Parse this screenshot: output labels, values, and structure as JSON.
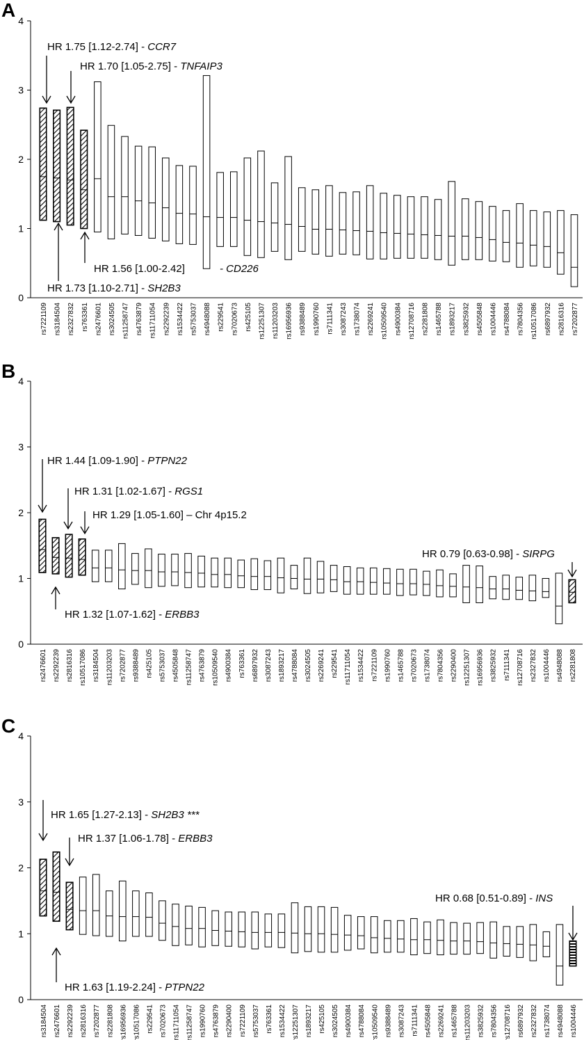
{
  "chart_data": [
    {
      "panel": "A",
      "type": "box",
      "ylim": [
        0,
        4
      ],
      "yticks": [
        0,
        1,
        2,
        3,
        4
      ],
      "categories": [
        "rs7221109",
        "rs3184504",
        "rs2327832",
        "rs763361",
        "rs2476601",
        "rs3024505",
        "rs11258747",
        "rs4763879",
        "rs11711054",
        "rs2292239",
        "rs1534422",
        "rs5753037",
        "rs4948088",
        "rs229541",
        "rs7020673",
        "rs425105",
        "rs12251307",
        "rs11203203",
        "rs16956936",
        "rs9388489",
        "rs1990760",
        "rs7111341",
        "rs3087243",
        "rs1738074",
        "rs2269241",
        "rs10509540",
        "rs4900384",
        "rs12708716",
        "rs2281808",
        "rs1465788",
        "rs1893217",
        "rs3825932",
        "rs4505848",
        "rs1004446",
        "rs4788084",
        "rs7804356",
        "rs10517086",
        "rs6897932",
        "rs2816316",
        "rs7202877"
      ],
      "hr": [
        1.75,
        1.73,
        1.7,
        1.56,
        1.72,
        1.46,
        1.46,
        1.4,
        1.37,
        1.3,
        1.22,
        1.21,
        1.17,
        1.16,
        1.16,
        1.12,
        1.1,
        1.08,
        1.06,
        1.03,
        0.99,
        0.99,
        0.98,
        0.97,
        0.96,
        0.94,
        0.93,
        0.92,
        0.91,
        0.9,
        0.89,
        0.89,
        0.87,
        0.84,
        0.8,
        0.79,
        0.76,
        0.74,
        0.65,
        0.44
      ],
      "lower": [
        1.12,
        1.1,
        1.05,
        1.0,
        0.95,
        0.85,
        0.92,
        0.9,
        0.86,
        0.82,
        0.78,
        0.77,
        0.42,
        0.74,
        0.74,
        0.61,
        0.58,
        0.67,
        0.55,
        0.67,
        0.63,
        0.6,
        0.63,
        0.62,
        0.56,
        0.56,
        0.57,
        0.57,
        0.57,
        0.55,
        0.47,
        0.55,
        0.55,
        0.53,
        0.52,
        0.44,
        0.46,
        0.44,
        0.34,
        0.16
      ],
      "upper": [
        2.74,
        2.71,
        2.75,
        2.42,
        3.12,
        2.49,
        2.33,
        2.19,
        2.18,
        2.02,
        1.91,
        1.9,
        3.21,
        1.81,
        1.82,
        2.02,
        2.12,
        1.66,
        2.04,
        1.59,
        1.56,
        1.62,
        1.52,
        1.53,
        1.62,
        1.51,
        1.48,
        1.46,
        1.46,
        1.42,
        1.68,
        1.43,
        1.39,
        1.32,
        1.26,
        1.36,
        1.26,
        1.24,
        1.26,
        1.2
      ],
      "style": [
        "hatch",
        "hatch",
        "hatch",
        "hatch",
        "plain",
        "plain",
        "plain",
        "plain",
        "plain",
        "plain",
        "plain",
        "plain",
        "plain",
        "plain",
        "plain",
        "plain",
        "plain",
        "plain",
        "plain",
        "plain",
        "plain",
        "plain",
        "plain",
        "plain",
        "plain",
        "plain",
        "plain",
        "plain",
        "plain",
        "plain",
        "plain",
        "plain",
        "plain",
        "plain",
        "plain",
        "plain",
        "plain",
        "plain",
        "plain",
        "plain"
      ],
      "annotations": [
        {
          "text_plain": "HR 1.75 [1.12-2.74] - ",
          "text_italic": "CCR7"
        },
        {
          "text_plain": "HR 1.70 [1.05-2.75] - ",
          "text_italic": "TNFAIP3"
        },
        {
          "text_plain": "HR 1.56 [1.00-2.42]",
          "text_italic": "- CD226"
        },
        {
          "text_plain": "HR 1.73 [1.10-2.71] - ",
          "text_italic": "SH2B3"
        }
      ]
    },
    {
      "panel": "B",
      "type": "box",
      "ylim": [
        0,
        4
      ],
      "yticks": [
        0,
        1,
        2,
        3,
        4
      ],
      "categories": [
        "rs2476601",
        "rs2292239",
        "rs2816316",
        "rs10517086",
        "rs3184504",
        "rs11203203",
        "rs7202877",
        "rs9388489",
        "rs425105",
        "rs5753037",
        "rs4505848",
        "rs11258747",
        "rs4763879",
        "rs10509540",
        "rs4900384",
        "rs763361",
        "rs6897932",
        "rs3087243",
        "rs1893217",
        "rs4788084",
        "rs3024505",
        "rs2269241",
        "rs229541",
        "rs11711054",
        "rs1534422",
        "rs7221109",
        "rs1990760",
        "rs1465788",
        "rs7020673",
        "rs1738074",
        "rs7804356",
        "rs2290400",
        "rs12251307",
        "rs16956936",
        "rs3825932",
        "rs7111341",
        "rs12708716",
        "rs2327832",
        "rs1004446",
        "rs4948088",
        "rs2281808"
      ],
      "hr": [
        1.44,
        1.32,
        1.31,
        1.29,
        1.16,
        1.16,
        1.13,
        1.12,
        1.12,
        1.1,
        1.1,
        1.09,
        1.08,
        1.06,
        1.06,
        1.04,
        1.03,
        1.03,
        1.01,
        1.0,
        0.99,
        0.99,
        0.98,
        0.95,
        0.95,
        0.94,
        0.93,
        0.92,
        0.92,
        0.91,
        0.89,
        0.88,
        0.87,
        0.86,
        0.84,
        0.84,
        0.82,
        0.81,
        0.8,
        0.58,
        0.79
      ],
      "lower": [
        1.09,
        1.07,
        1.02,
        1.05,
        0.95,
        0.95,
        0.84,
        0.91,
        0.86,
        0.88,
        0.89,
        0.86,
        0.87,
        0.87,
        0.86,
        0.86,
        0.83,
        0.83,
        0.78,
        0.84,
        0.77,
        0.78,
        0.8,
        0.76,
        0.76,
        0.76,
        0.76,
        0.74,
        0.75,
        0.74,
        0.72,
        0.72,
        0.63,
        0.63,
        0.69,
        0.68,
        0.68,
        0.66,
        0.71,
        0.31,
        0.63
      ],
      "upper": [
        1.9,
        1.62,
        1.67,
        1.6,
        1.43,
        1.43,
        1.53,
        1.38,
        1.45,
        1.37,
        1.37,
        1.38,
        1.34,
        1.31,
        1.31,
        1.28,
        1.3,
        1.27,
        1.31,
        1.2,
        1.31,
        1.26,
        1.2,
        1.18,
        1.16,
        1.16,
        1.15,
        1.14,
        1.14,
        1.11,
        1.13,
        1.07,
        1.2,
        1.19,
        1.03,
        1.05,
        1.02,
        1.05,
        1.0,
        1.08,
        0.98
      ],
      "style": [
        "hatch",
        "hatch",
        "hatch",
        "hatch",
        "plain",
        "plain",
        "plain",
        "plain",
        "plain",
        "plain",
        "plain",
        "plain",
        "plain",
        "plain",
        "plain",
        "plain",
        "plain",
        "plain",
        "plain",
        "plain",
        "plain",
        "plain",
        "plain",
        "plain",
        "plain",
        "plain",
        "plain",
        "plain",
        "plain",
        "plain",
        "plain",
        "plain",
        "plain",
        "plain",
        "plain",
        "plain",
        "plain",
        "plain",
        "plain",
        "plain",
        "hatch"
      ],
      "annotations": [
        {
          "text_plain": "HR 1.44 [1.09-1.90] - ",
          "text_italic": "PTPN22"
        },
        {
          "text_plain": "HR 1.31 [1.02-1.67] - ",
          "text_italic": "RGS1"
        },
        {
          "text_plain": "HR 1.29 [1.05-1.60] – Chr 4p15.2",
          "text_italic": ""
        },
        {
          "text_plain": "HR 0.79 [0.63-0.98] - ",
          "text_italic": "SIRPG"
        },
        {
          "text_plain": "HR 1.32 [1.07-1.62] - ",
          "text_italic": "ERBB3"
        }
      ]
    },
    {
      "panel": "C",
      "type": "box",
      "ylim": [
        0,
        4
      ],
      "yticks": [
        0,
        1,
        2,
        3,
        4
      ],
      "categories": [
        "rs3184504",
        "rs2476601",
        "rs2292239",
        "rs2816316",
        "rs7202877",
        "rs2281808",
        "rs16956936",
        "rs10517086",
        "rs229541",
        "rs7020673",
        "rs11711054",
        "rs11258747",
        "rs1990760",
        "rs4763879",
        "rs2290400",
        "rs7221109",
        "rs5753037",
        "rs763361",
        "rs1534422",
        "rs12251307",
        "rs1893217",
        "rs425105",
        "rs3024505",
        "rs4900384",
        "rs4788084",
        "rs10509540",
        "rs9388489",
        "rs3087243",
        "rs7111341",
        "rs4505848",
        "rs2269241",
        "rs1465788",
        "rs11203203",
        "rs3825932",
        "rs7804356",
        "rs12708716",
        "rs6897932",
        "rs2327832",
        "rs1738074",
        "rs4948088",
        "rs1004446"
      ],
      "hr": [
        1.65,
        1.63,
        1.37,
        1.35,
        1.35,
        1.27,
        1.26,
        1.26,
        1.25,
        1.16,
        1.11,
        1.08,
        1.08,
        1.05,
        1.04,
        1.03,
        1.02,
        1.02,
        1.02,
        1.01,
        1.0,
        1.0,
        0.99,
        0.98,
        0.97,
        0.94,
        0.93,
        0.92,
        0.91,
        0.91,
        0.9,
        0.89,
        0.89,
        0.88,
        0.86,
        0.85,
        0.84,
        0.83,
        0.81,
        0.51,
        0.68
      ],
      "lower": [
        1.27,
        1.19,
        1.06,
        0.99,
        0.97,
        0.96,
        0.89,
        0.96,
        0.96,
        0.9,
        0.82,
        0.83,
        0.8,
        0.82,
        0.81,
        0.8,
        0.77,
        0.8,
        0.79,
        0.71,
        0.73,
        0.72,
        0.72,
        0.75,
        0.77,
        0.71,
        0.72,
        0.72,
        0.68,
        0.7,
        0.68,
        0.69,
        0.69,
        0.7,
        0.63,
        0.66,
        0.64,
        0.59,
        0.65,
        0.22,
        0.51
      ],
      "upper": [
        2.13,
        2.24,
        1.78,
        1.86,
        1.9,
        1.65,
        1.8,
        1.65,
        1.62,
        1.5,
        1.45,
        1.42,
        1.4,
        1.35,
        1.33,
        1.33,
        1.33,
        1.3,
        1.3,
        1.47,
        1.41,
        1.41,
        1.4,
        1.28,
        1.26,
        1.26,
        1.2,
        1.2,
        1.23,
        1.18,
        1.21,
        1.17,
        1.16,
        1.17,
        1.18,
        1.11,
        1.11,
        1.14,
        1.03,
        1.14,
        0.89
      ],
      "style": [
        "hatch",
        "hatch",
        "hatch",
        "plain",
        "plain",
        "plain",
        "plain",
        "plain",
        "plain",
        "plain",
        "plain",
        "plain",
        "plain",
        "plain",
        "plain",
        "plain",
        "plain",
        "plain",
        "plain",
        "plain",
        "plain",
        "plain",
        "plain",
        "plain",
        "plain",
        "plain",
        "plain",
        "plain",
        "plain",
        "plain",
        "plain",
        "plain",
        "plain",
        "plain",
        "plain",
        "plain",
        "plain",
        "plain",
        "plain",
        "plain",
        "hbar"
      ],
      "annotations": [
        {
          "text_plain": "HR 1.65 [1.27-2.13] - ",
          "text_italic": "SH2B3 ***"
        },
        {
          "text_plain": "HR 1.37 [1.06-1.78] - ",
          "text_italic": "ERBB3"
        },
        {
          "text_plain": "HR 0.68 [0.51-0.89] - ",
          "text_italic": "INS"
        },
        {
          "text_plain": "HR 1.63 [1.19-2.24] - ",
          "text_italic": "PTPN22"
        }
      ]
    }
  ]
}
